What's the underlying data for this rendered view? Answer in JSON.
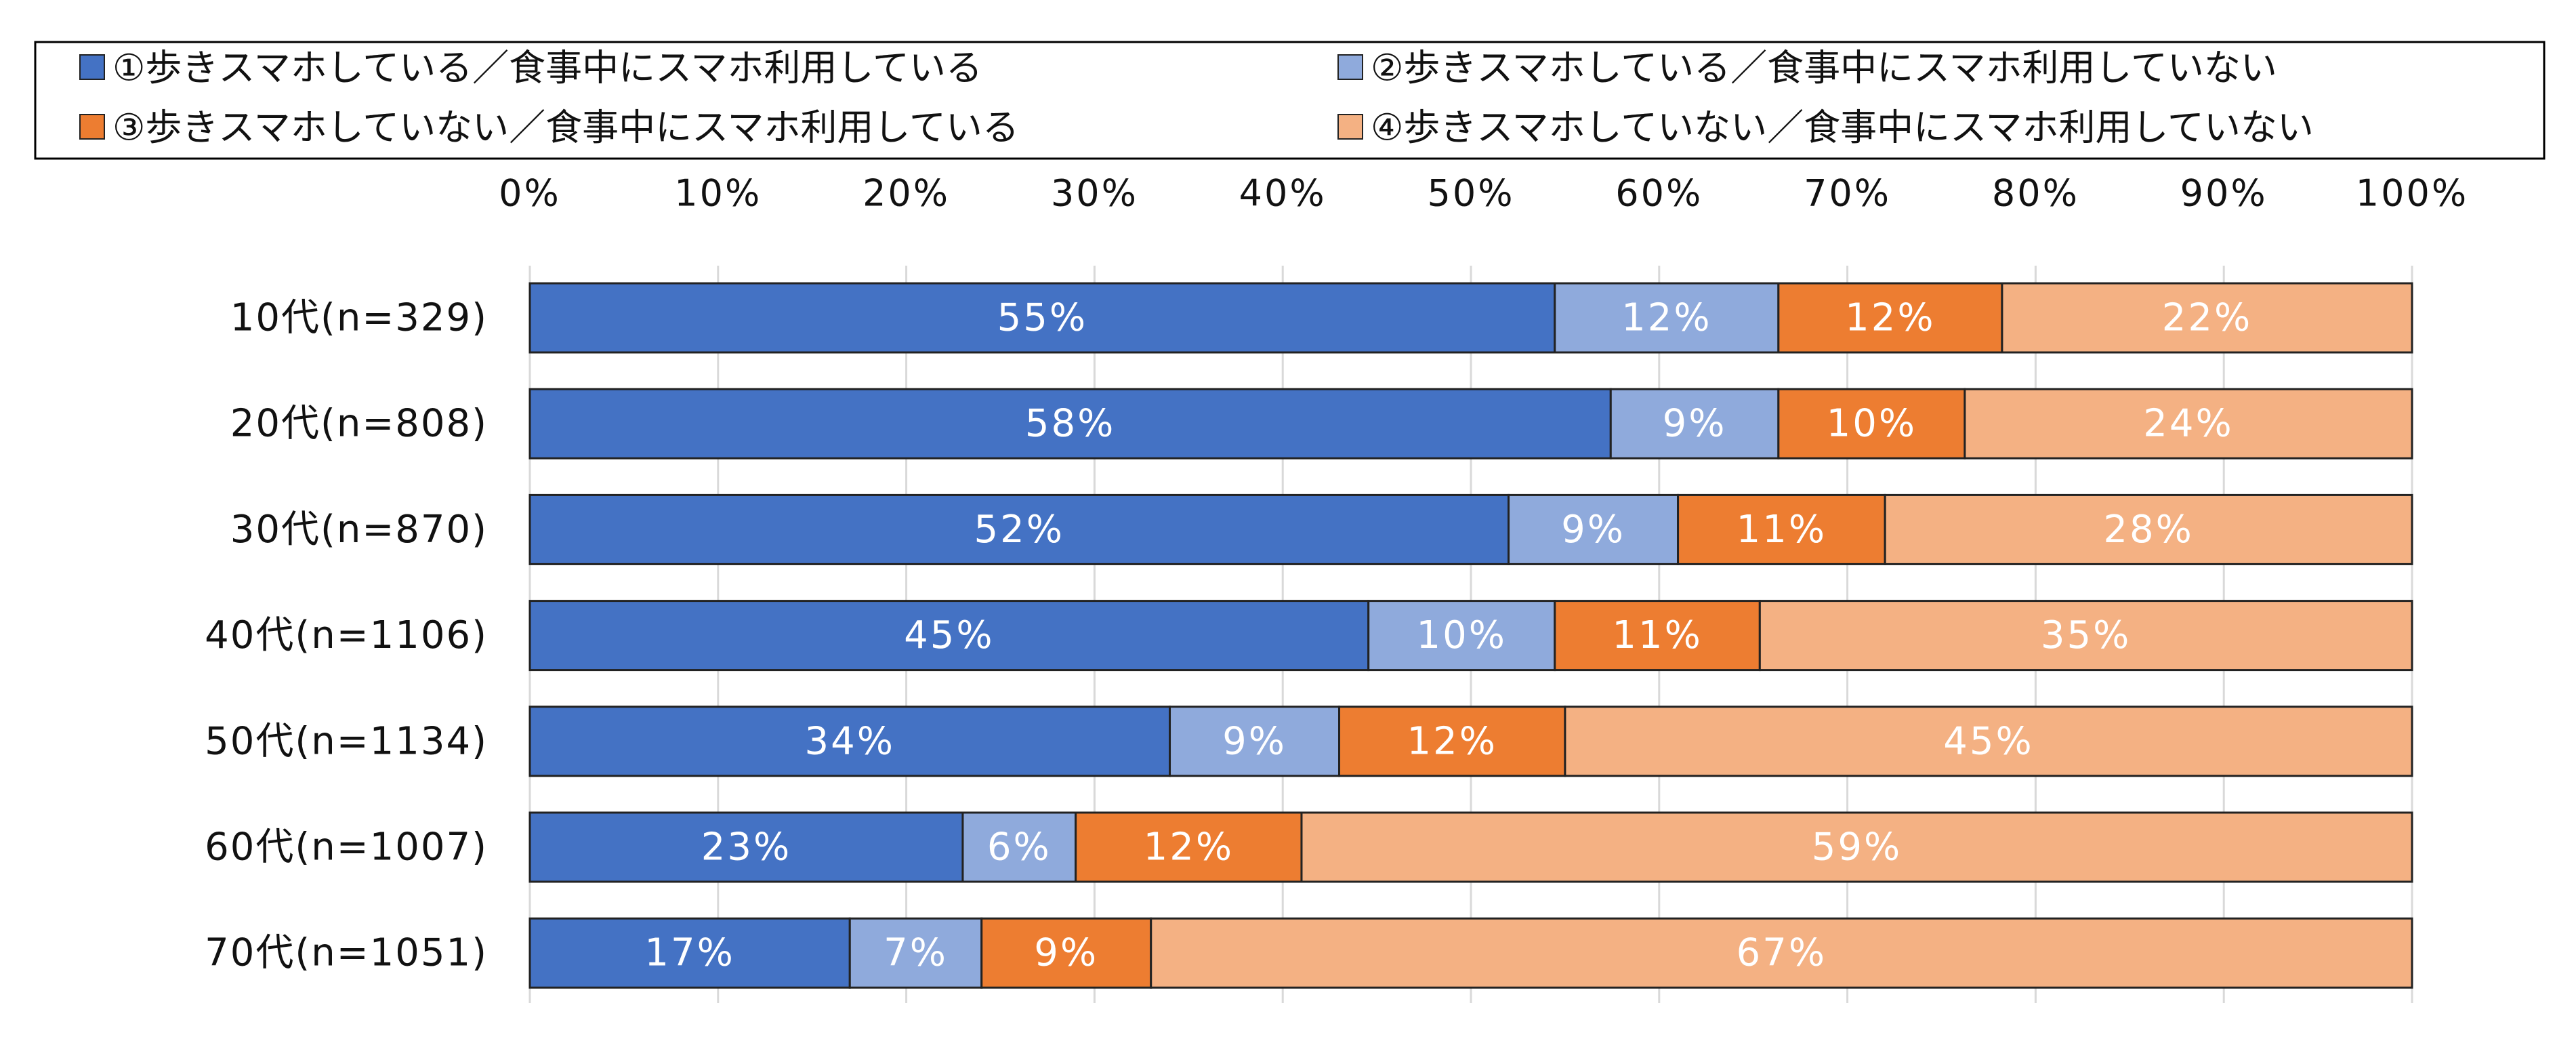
{
  "chart_data": {
    "type": "bar",
    "orientation": "horizontal",
    "stacked": true,
    "percent_stacked": true,
    "xlim": [
      0,
      100
    ],
    "x_ticks": [
      "0%",
      "10%",
      "20%",
      "30%",
      "40%",
      "50%",
      "60%",
      "70%",
      "80%",
      "90%",
      "100%"
    ],
    "x_axis_position": "top",
    "grid": true,
    "legend_position": "top",
    "categories": [
      "10代(n=329)",
      "20代(n=808)",
      "30代(n=870)",
      "40代(n=1106)",
      "50代(n=1134)",
      "60代(n=1007)",
      "70代(n=1051)"
    ],
    "series": [
      {
        "name": "①歩きスマホしている／食事中にスマホ利用している",
        "color": "#4472C4",
        "values": [
          55,
          58,
          52,
          45,
          34,
          23,
          17
        ],
        "labels": [
          "55%",
          "58%",
          "52%",
          "45%",
          "34%",
          "23%",
          "17%"
        ]
      },
      {
        "name": "②歩きスマホしている／食事中にスマホ利用していない",
        "color": "#8FAADC",
        "values": [
          12,
          9,
          9,
          10,
          9,
          6,
          7
        ],
        "labels": [
          "12%",
          "9%",
          "9%",
          "10%",
          "9%",
          "6%",
          "7%"
        ]
      },
      {
        "name": "③歩きスマホしていない／食事中にスマホ利用している",
        "color": "#ED7D31",
        "values": [
          12,
          10,
          11,
          11,
          12,
          12,
          9
        ],
        "labels": [
          "12%",
          "10%",
          "11%",
          "11%",
          "12%",
          "12%",
          "9%"
        ]
      },
      {
        "name": "④歩きスマホしていない／食事中にスマホ利用していない",
        "color": "#F4B183",
        "values": [
          22,
          24,
          28,
          35,
          45,
          59,
          67
        ],
        "labels": [
          "22%",
          "24%",
          "28%",
          "35%",
          "45%",
          "59%",
          "67%"
        ]
      }
    ]
  }
}
